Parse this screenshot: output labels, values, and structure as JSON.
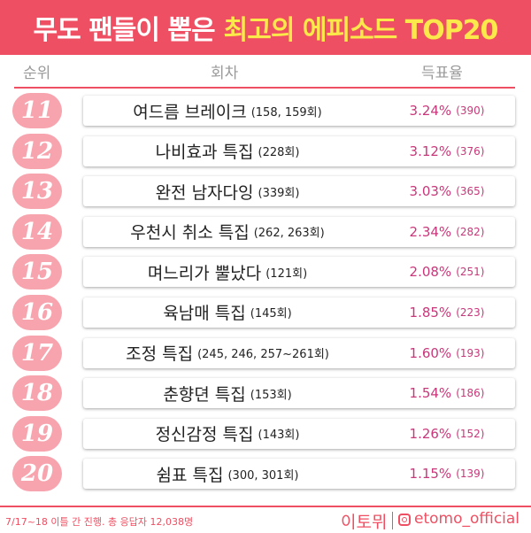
{
  "header": {
    "title_part1": "무도 팬들이 뽑은",
    "title_part2": "최고의 에피소드 TOP20"
  },
  "columns": {
    "rank": "순위",
    "episode": "회차",
    "votes": "득표율"
  },
  "rows": [
    {
      "rank": "11",
      "title": "여드름 브레이크",
      "episodes": "(158, 159회)",
      "percent": "3.24%",
      "count": "(390)"
    },
    {
      "rank": "12",
      "title": "나비효과 특집",
      "episodes": "(228회)",
      "percent": "3.12%",
      "count": "(376)"
    },
    {
      "rank": "13",
      "title": "완전 남자다잉",
      "episodes": "(339회)",
      "percent": "3.03%",
      "count": "(365)"
    },
    {
      "rank": "14",
      "title": "우천시 취소 특집",
      "episodes": "(262, 263회)",
      "percent": "2.34%",
      "count": "(282)"
    },
    {
      "rank": "15",
      "title": "며느리가 뿔났다",
      "episodes": "(121회)",
      "percent": "2.08%",
      "count": "(251)"
    },
    {
      "rank": "16",
      "title": "육남매 특집",
      "episodes": "(145회)",
      "percent": "1.85%",
      "count": "(223)"
    },
    {
      "rank": "17",
      "title": "조정 특집",
      "episodes": "(245, 246, 257~261회)",
      "percent": "1.60%",
      "count": "(193)"
    },
    {
      "rank": "18",
      "title": "춘향뎐 특집",
      "episodes": "(153회)",
      "percent": "1.54%",
      "count": "(186)"
    },
    {
      "rank": "19",
      "title": "정신감정 특집",
      "episodes": "(143회)",
      "percent": "1.26%",
      "count": "(152)"
    },
    {
      "rank": "20",
      "title": "쉼표 특집",
      "episodes": "(300, 301회)",
      "percent": "1.15%",
      "count": "(139)"
    }
  ],
  "footer": {
    "note": "7/17~18 이틀 간 진행. 총 응답자 12,038명",
    "brand": "이토뮈",
    "handle": "etomo_official",
    "icon": "instagram-icon"
  },
  "colors": {
    "accent": "#ef4f62",
    "highlight": "#fbe84a",
    "badge": "#f7a4ae",
    "percent": "#c8377a"
  }
}
